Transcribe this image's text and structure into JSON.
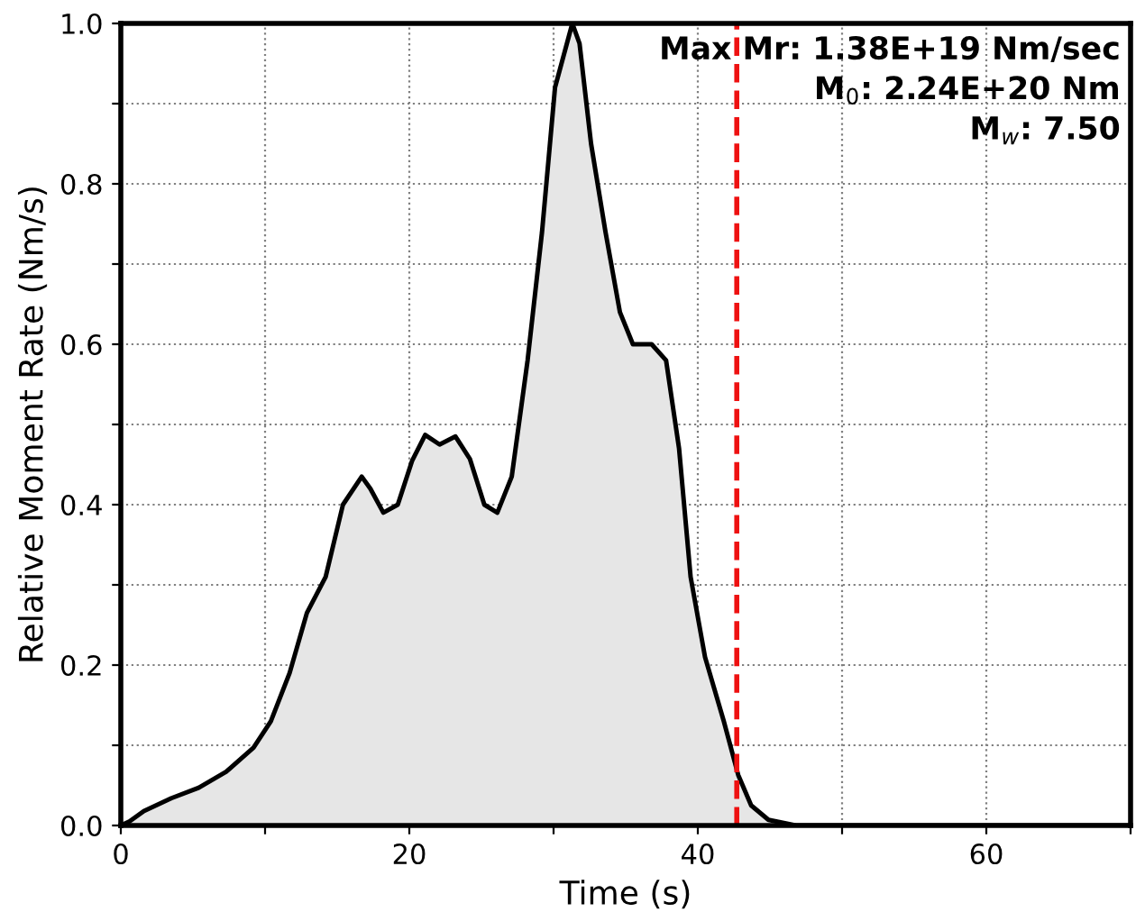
{
  "chart_data": {
    "type": "area",
    "xlabel": "Time (s)",
    "ylabel": "Relative Moment Rate (Nm/s)",
    "annotations": [
      "Max Mr: 1.38E+19 Nm/sec",
      "M$_{0}$: 2.24E+20 Nm",
      "M$_{w}$: 7.50"
    ],
    "xlim": [
      0,
      70
    ],
    "ylim": [
      0,
      1
    ],
    "xticks": [
      0,
      {
        "value": 10,
        "label": null
      },
      20,
      {
        "value": 30,
        "label": null
      },
      40,
      {
        "value": 50,
        "label": null
      },
      60,
      {
        "value": 70,
        "label": null
      }
    ],
    "yticks": [
      {
        "value": 0,
        "label": "0.0"
      },
      {
        "value": 0.1,
        "label": null
      },
      0.2,
      {
        "value": 0.3,
        "label": null
      },
      0.4,
      {
        "value": 0.5,
        "label": null
      },
      0.6,
      {
        "value": 0.7,
        "label": null
      },
      0.8,
      {
        "value": 0.9,
        "label": null
      },
      {
        "value": 1,
        "label": "1.0"
      }
    ],
    "grid": true,
    "ref_lines": [
      {
        "axis": "x",
        "value": 42.7,
        "color": "#ee1111",
        "line_style": "dashed"
      }
    ],
    "series": [
      {
        "color": "#e6e6e6",
        "x": [
          0,
          0.6,
          1.6,
          3.5,
          5.4,
          7.3,
          9.2,
          10.4,
          11.7,
          12.9,
          14.2,
          15.4,
          16.7,
          17.3,
          18.2,
          19.2,
          20.2,
          21.1,
          22.1,
          23.2,
          24.2,
          25.2,
          26.1,
          27.1,
          28.2,
          29.2,
          30.1,
          31.3,
          31.8,
          32.6,
          33.6,
          34.6,
          35.5,
          36.8,
          37.8,
          38.7,
          39.5,
          40.5,
          41.8,
          42.8,
          43.7,
          44.9,
          46.8,
          70
        ],
        "values": [
          0,
          0.005,
          0.018,
          0.034,
          0.047,
          0.067,
          0.097,
          0.13,
          0.19,
          0.265,
          0.31,
          0.4,
          0.435,
          0.42,
          0.39,
          0.4,
          0.455,
          0.487,
          0.475,
          0.485,
          0.457,
          0.4,
          0.39,
          0.435,
          0.58,
          0.74,
          0.92,
          1.0,
          0.975,
          0.85,
          0.74,
          0.64,
          0.6,
          0.6,
          0.58,
          0.47,
          0.31,
          0.21,
          0.13,
          0.063,
          0.025,
          0.007,
          0,
          0
        ]
      }
    ]
  }
}
